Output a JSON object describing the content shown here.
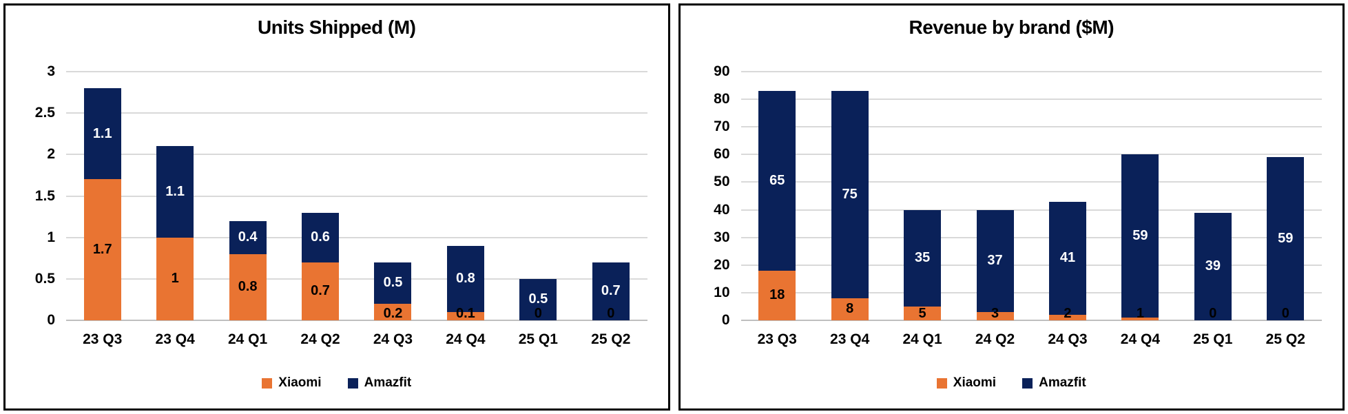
{
  "styles": {
    "gridline_color": "#D9D9D9",
    "baseline_color": "#BFBFBF",
    "panel_border_color": "#000000",
    "xiaomi_color": "#E97432",
    "amazfit_color": "#0A2159"
  },
  "chart_data": [
    {
      "type": "bar",
      "stacked": true,
      "title": "Units Shipped (M)",
      "xlabel": "",
      "ylabel": "",
      "ylim": [
        0,
        3
      ],
      "grid": true,
      "legend_position": "bottom",
      "categories": [
        "23 Q3",
        "23 Q4",
        "24 Q1",
        "24 Q2",
        "24 Q3",
        "24 Q4",
        "25 Q1",
        "25 Q2"
      ],
      "y_ticks": [
        {
          "label": "0",
          "value": 0
        },
        {
          "label": "0.5",
          "value": 0.5
        },
        {
          "label": "1",
          "value": 1
        },
        {
          "label": "1.5",
          "value": 1.5
        },
        {
          "label": "2",
          "value": 2
        },
        {
          "label": "2.5",
          "value": 2.5
        },
        {
          "label": "3",
          "value": 3
        }
      ],
      "series": [
        {
          "name": "Xiaomi",
          "color": "#E97432",
          "label_color": "#000000",
          "values": [
            1.7,
            1,
            0.8,
            0.7,
            0.2,
            0.1,
            0,
            0
          ],
          "data_labels": [
            "1.7",
            "1",
            "0.8",
            "0.7",
            "0.2",
            "0.1",
            "0",
            "0"
          ]
        },
        {
          "name": "Amazfit",
          "color": "#0A2159",
          "label_color": "#FFFFFF",
          "values": [
            1.1,
            1.1,
            0.4,
            0.6,
            0.5,
            0.8,
            0.5,
            0.7
          ],
          "data_labels": [
            "1.1",
            "1.1",
            "0.4",
            "0.6",
            "0.5",
            "0.8",
            "0.5",
            "0.7"
          ]
        }
      ]
    },
    {
      "type": "bar",
      "stacked": true,
      "title": "Revenue by brand ($M)",
      "xlabel": "",
      "ylabel": "",
      "ylim": [
        0,
        90
      ],
      "grid": true,
      "legend_position": "bottom",
      "categories": [
        "23 Q3",
        "23 Q4",
        "24 Q1",
        "24 Q2",
        "24 Q3",
        "24 Q4",
        "25 Q1",
        "25 Q2"
      ],
      "y_ticks": [
        {
          "label": "0",
          "value": 0
        },
        {
          "label": "10",
          "value": 10
        },
        {
          "label": "20",
          "value": 20
        },
        {
          "label": "30",
          "value": 30
        },
        {
          "label": "40",
          "value": 40
        },
        {
          "label": "50",
          "value": 50
        },
        {
          "label": "60",
          "value": 60
        },
        {
          "label": "70",
          "value": 70
        },
        {
          "label": "80",
          "value": 80
        },
        {
          "label": "90",
          "value": 90
        }
      ],
      "series": [
        {
          "name": "Xiaomi",
          "color": "#E97432",
          "label_color": "#000000",
          "values": [
            18,
            8,
            5,
            3,
            2,
            1,
            0,
            0
          ],
          "data_labels": [
            "18",
            "8",
            "5",
            "3",
            "2",
            "1",
            "0",
            "0"
          ]
        },
        {
          "name": "Amazfit",
          "color": "#0A2159",
          "label_color": "#FFFFFF",
          "values": [
            65,
            75,
            35,
            37,
            41,
            59,
            39,
            59
          ],
          "data_labels": [
            "65",
            "75",
            "35",
            "37",
            "41",
            "59",
            "39",
            "59"
          ]
        }
      ]
    }
  ]
}
